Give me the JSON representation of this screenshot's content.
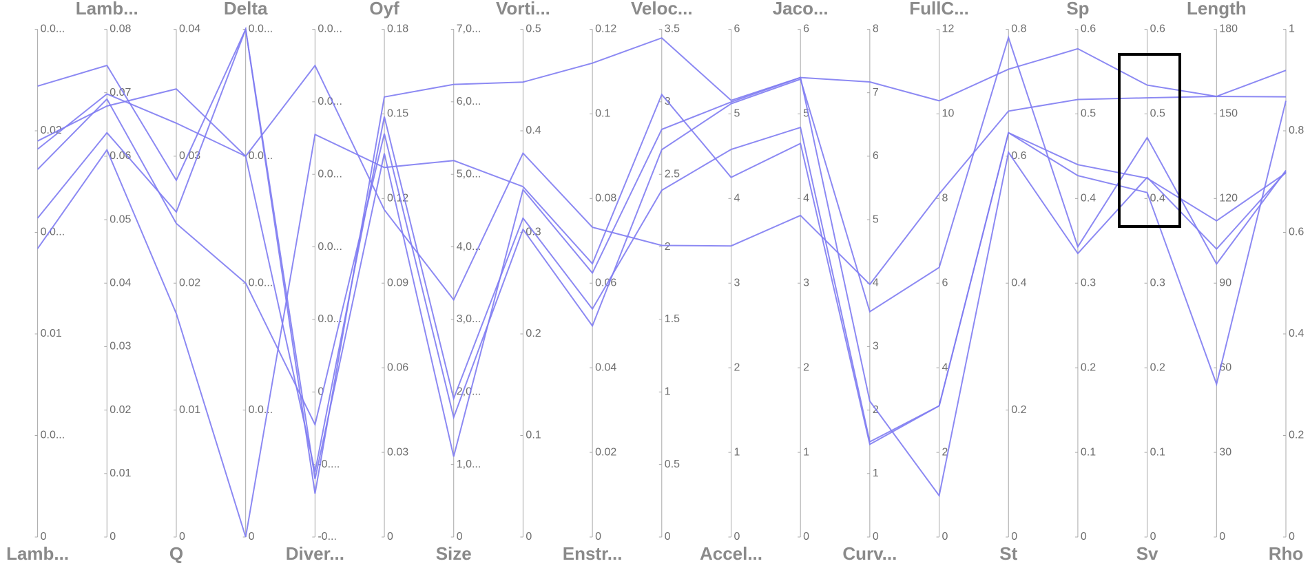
{
  "chart_data": {
    "type": "parallel",
    "color": "#7f7cf2",
    "axes": [
      {
        "name": "Lamb...",
        "lim": [
          0,
          0.025
        ],
        "ticks": [
          0,
          {
            "value": 0.005,
            "label": "0.0..."
          },
          0.01,
          {
            "value": 0.015,
            "label": "0.0..."
          },
          0.02,
          {
            "value": 0.025,
            "label": "0.0..."
          }
        ]
      },
      {
        "name": "Lamb...",
        "lim": [
          0,
          0.08
        ],
        "ticks": [
          0,
          0.01,
          0.02,
          0.03,
          0.04,
          0.05,
          0.06,
          0.07,
          0.08
        ]
      },
      {
        "name": "Q",
        "lim": [
          0,
          0.04
        ],
        "ticks": [
          0,
          0.01,
          0.02,
          0.03,
          0.04
        ]
      },
      {
        "name": "Delta",
        "lim": [
          0,
          0.008
        ],
        "ticks": [
          0,
          {
            "value": 0.002,
            "label": "0.0..."
          },
          {
            "value": 0.004,
            "label": "0.0..."
          },
          {
            "value": 0.006,
            "label": "0.0..."
          },
          {
            "value": 0.008,
            "label": "0.0..."
          }
        ]
      },
      {
        "name": "Diver...",
        "lim": [
          -0.004,
          0.01
        ],
        "ticks": [
          {
            "value": -0.004,
            "label": "-0..."
          },
          {
            "value": -0.002,
            "label": "-0...."
          },
          0,
          {
            "value": 0.002,
            "label": "0.0..."
          },
          {
            "value": 0.004,
            "label": "0.0..."
          },
          {
            "value": 0.006,
            "label": "0.0..."
          },
          {
            "value": 0.008,
            "label": "0.0..."
          },
          {
            "value": 0.01,
            "label": "0.0..."
          }
        ]
      },
      {
        "name": "Oyf",
        "lim": [
          0,
          0.18
        ],
        "ticks": [
          0,
          0.03,
          0.06,
          0.09,
          0.12,
          0.15,
          0.18
        ]
      },
      {
        "name": "Size",
        "lim": [
          0,
          7000
        ],
        "ticks": [
          0,
          {
            "value": 1000,
            "label": "1,0..."
          },
          {
            "value": 2000,
            "label": "2,0..."
          },
          {
            "value": 3000,
            "label": "3,0..."
          },
          {
            "value": 4000,
            "label": "4,0..."
          },
          {
            "value": 5000,
            "label": "5,0..."
          },
          {
            "value": 6000,
            "label": "6,0..."
          },
          {
            "value": 7000,
            "label": "7,0..."
          }
        ]
      },
      {
        "name": "Vorti...",
        "lim": [
          0,
          0.5
        ],
        "ticks": [
          0,
          0.1,
          0.2,
          0.3,
          0.4,
          0.5
        ]
      },
      {
        "name": "Enstr...",
        "lim": [
          0,
          0.12
        ],
        "ticks": [
          0,
          0.02,
          0.04,
          0.06,
          0.08,
          0.1,
          0.12
        ]
      },
      {
        "name": "Veloc...",
        "lim": [
          0,
          3.5
        ],
        "ticks": [
          0,
          0.5,
          1,
          1.5,
          2,
          2.5,
          3,
          3.5
        ]
      },
      {
        "name": "Accel...",
        "lim": [
          0,
          6
        ],
        "ticks": [
          0,
          1,
          2,
          3,
          4,
          5,
          6
        ]
      },
      {
        "name": "Jaco...",
        "lim": [
          0,
          6
        ],
        "ticks": [
          0,
          1,
          2,
          3,
          4,
          5,
          6
        ]
      },
      {
        "name": "Curv...",
        "lim": [
          0,
          8
        ],
        "ticks": [
          0,
          1,
          2,
          3,
          4,
          5,
          6,
          7,
          8
        ]
      },
      {
        "name": "FullC...",
        "lim": [
          0,
          12
        ],
        "ticks": [
          0,
          2,
          4,
          6,
          8,
          10,
          12
        ]
      },
      {
        "name": "St",
        "lim": [
          0,
          0.8
        ],
        "ticks": [
          0,
          0.2,
          0.4,
          0.6,
          0.8
        ]
      },
      {
        "name": "Sp",
        "lim": [
          0,
          0.6
        ],
        "ticks": [
          0,
          0.1,
          0.2,
          0.3,
          0.4,
          0.5,
          0.6
        ]
      },
      {
        "name": "Sv",
        "lim": [
          0,
          0.6
        ],
        "ticks": [
          0,
          0.1,
          0.2,
          0.3,
          0.4,
          0.5,
          0.6
        ]
      },
      {
        "name": "Length",
        "lim": [
          0,
          180
        ],
        "ticks": [
          0,
          30,
          60,
          90,
          120,
          150,
          180
        ]
      },
      {
        "name": "Rho",
        "lim": [
          0,
          1
        ],
        "ticks": [
          0,
          0.2,
          0.4,
          0.6,
          0.8,
          1
        ]
      }
    ],
    "series": [
      {
        "values": [
          0.0222,
          0.0743,
          0.0281,
          0.008,
          -0.0028,
          0.156,
          6240,
          0.448,
          0.112,
          3.44,
          5.16,
          5.43,
          7.17,
          10.31,
          0.737,
          0.577,
          0.534,
          156.2,
          0.919
        ]
      },
      {
        "values": [
          0.0195,
          0.0679,
          0.0353,
          0.006,
          0.009,
          0.116,
          3270,
          0.378,
          0.0732,
          2.01,
          3.44,
          3.8,
          3.98,
          8.11,
          0.671,
          0.517,
          0.519,
          156.2,
          0.867
        ]
      },
      {
        "values": [
          0.0191,
          0.0698,
          0.0326,
          0.006,
          -0.0022,
          0.149,
          1910,
          0.314,
          0.0539,
          2.39,
          4.58,
          4.84,
          1.5,
          3.1,
          0.637,
          0.44,
          0.424,
          112.1,
          0.717
        ]
      },
      {
        "values": [
          0.0181,
          0.069,
          0.0247,
          0.004,
          -0.0009,
          0.143,
          1650,
          0.303,
          0.0499,
          2.67,
          5.12,
          5.41,
          3.55,
          6.37,
          0.787,
          0.343,
          0.472,
          96.8,
          0.722
        ]
      },
      {
        "values": [
          0.0157,
          0.0637,
          0.0256,
          0.008,
          -0.0024,
          0.136,
          1110,
          0.342,
          0.0624,
          2.81,
          5.14,
          5.43,
          2.14,
          0.98,
          0.606,
          0.335,
          0.425,
          102.1,
          0.719
        ]
      },
      {
        "values": [
          0.0142,
          0.061,
          0.0176,
          0,
          0.0071,
          0.131,
          5190,
          0.345,
          0.0646,
          3.05,
          4.25,
          4.65,
          1.46,
          3.1,
          0.637,
          0.427,
          0.407,
          54.2,
          0.859
        ]
      }
    ]
  }
}
